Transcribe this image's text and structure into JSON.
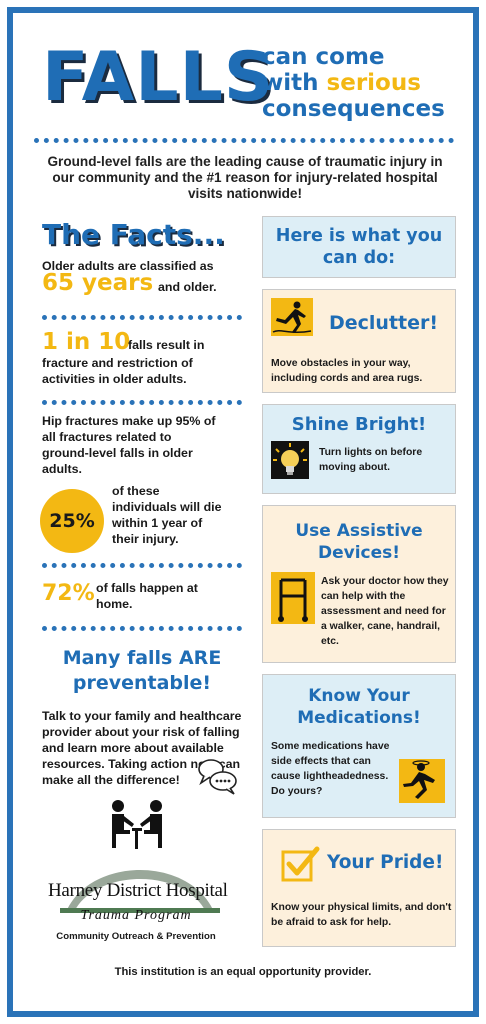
{
  "header": {
    "title": "FALLS",
    "tagline_line1": "can come",
    "tagline_with": "with",
    "tagline_serious": "serious",
    "tagline_line3": "consequences"
  },
  "intro": "Ground-level falls are the leading cause of traumatic injury in our community and the #1 reason for injury-related hospital visits nationwide!",
  "facts": {
    "title": "The Facts...",
    "fact1_text": "Older adults are classified as",
    "fact1_big": "65 years",
    "fact1_tail": "and older.",
    "fact2_big": "1 in 10",
    "fact2_head": "falls result in",
    "fact2_tail": "fracture and restriction of activities in older adults.",
    "fact3_text": "Hip fractures make up 95% of all fractures related to ground-level falls in older adults.",
    "fact3_circle": "25%",
    "fact3_circle_text": "of these individuals will die within 1 year of their injury.",
    "fact4_big": "72%",
    "fact4_text": "of falls happen at home."
  },
  "preventable": {
    "title": "Many falls ARE preventable!",
    "text": "Talk to your family and healthcare provider about your risk of falling and learn more about available resources. Taking action now can make all the difference!"
  },
  "actions": {
    "header": "Here is what you can do:",
    "declutter_title": "Declutter!",
    "declutter_text": "Move obstacles in your way, including cords and area rugs.",
    "shine_title": "Shine Bright!",
    "shine_text": "Turn lights on before moving about.",
    "assistive_title": "Use Assistive Devices!",
    "assistive_text": "Ask your doctor how they can help with the assessment and need for a walker, cane, handrail, etc.",
    "meds_title": "Know Your Medications!",
    "meds_text": "Some medications have side effects that can cause lightheadedness. Do yours?",
    "pride_title": "Your Pride!",
    "pride_text": "Know your physical limits, and don't be afraid to ask for help."
  },
  "logo": {
    "name": "Harney District Hospital",
    "program": "Trauma Program",
    "subtitle": "Community Outreach & Prevention"
  },
  "footer": "This institution is an equal opportunity provider.",
  "colors": {
    "brand_blue": "#1f6db5",
    "accent_gold": "#f3b813",
    "panel_blue": "#ddeef6",
    "panel_peach": "#fdf0dc"
  },
  "icons": [
    "tripping-person-icon",
    "light-bulb-icon",
    "walker-icon",
    "dizzy-person-icon",
    "check-box-icon",
    "conversation-icon",
    "hospital-arch-logo"
  ]
}
